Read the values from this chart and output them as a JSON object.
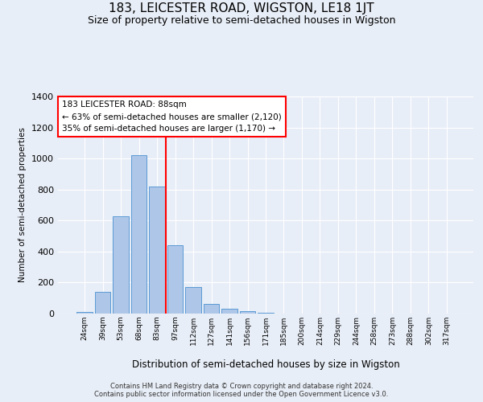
{
  "title": "183, LEICESTER ROAD, WIGSTON, LE18 1JT",
  "subtitle": "Size of property relative to semi-detached houses in Wigston",
  "xlabel": "Distribution of semi-detached houses by size in Wigston",
  "ylabel": "Number of semi-detached properties",
  "footer_line1": "Contains HM Land Registry data © Crown copyright and database right 2024.",
  "footer_line2": "Contains public sector information licensed under the Open Government Licence v3.0.",
  "categories": [
    "24sqm",
    "39sqm",
    "53sqm",
    "68sqm",
    "83sqm",
    "97sqm",
    "112sqm",
    "127sqm",
    "141sqm",
    "156sqm",
    "171sqm",
    "185sqm",
    "200sqm",
    "214sqm",
    "229sqm",
    "244sqm",
    "258sqm",
    "273sqm",
    "288sqm",
    "302sqm",
    "317sqm"
  ],
  "values": [
    10,
    140,
    630,
    1020,
    820,
    440,
    170,
    60,
    30,
    15,
    5,
    0,
    0,
    0,
    0,
    0,
    0,
    0,
    0,
    0,
    0
  ],
  "bar_color": "#aec6e8",
  "bar_edgecolor": "#5b9bd5",
  "vline_color": "red",
  "vline_index": 4,
  "annotation_title": "183 LEICESTER ROAD: 88sqm",
  "annotation_line1": "← 63% of semi-detached houses are smaller (2,120)",
  "annotation_line2": "35% of semi-detached houses are larger (1,170) →",
  "annotation_box_color": "white",
  "annotation_box_edgecolor": "red",
  "ylim": [
    0,
    1400
  ],
  "yticks": [
    0,
    200,
    400,
    600,
    800,
    1000,
    1200,
    1400
  ],
  "background_color": "#e8eef7",
  "grid_color": "white",
  "title_fontsize": 11,
  "subtitle_fontsize": 9
}
